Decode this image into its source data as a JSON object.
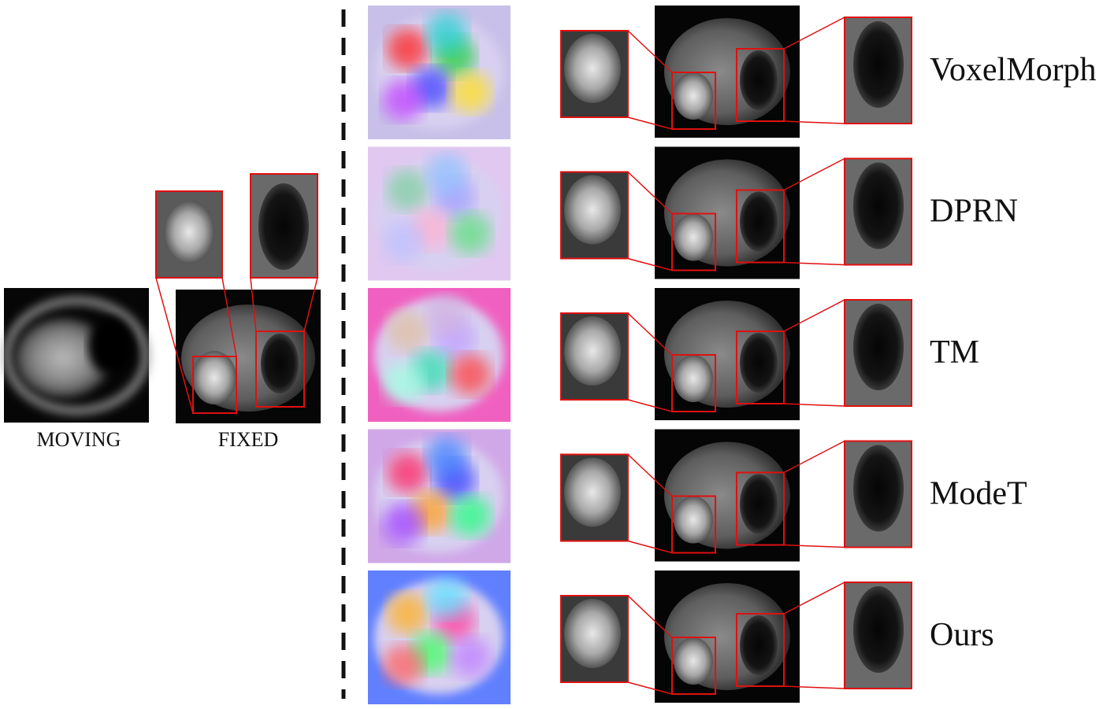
{
  "inputs": {
    "moving": "MOVING",
    "fixed": "FIXED"
  },
  "methods": [
    {
      "label": "VoxelMorph"
    },
    {
      "label": "DPRN"
    },
    {
      "label": "TM"
    },
    {
      "label": "ModeT"
    },
    {
      "label": "Ours"
    }
  ]
}
